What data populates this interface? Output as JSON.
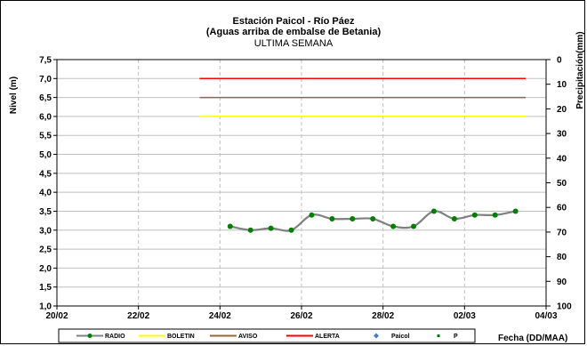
{
  "chart_data": {
    "type": "line",
    "title": "Estación Paicol - Río Páez",
    "subtitle": "(Aguas arriba de embalse de Betania)",
    "period": "ULTIMA SEMANA",
    "ylabel": "Nivel (m)",
    "y2label": "Precipitación(mm)",
    "xlabel": "Fecha (DD/MAA)",
    "ylim": [
      1.0,
      7.5
    ],
    "y2lim": [
      0,
      100
    ],
    "y2_inverted": true,
    "yticks": [
      "1,0",
      "1,5",
      "2,0",
      "2,5",
      "3,0",
      "3,5",
      "4,0",
      "4,5",
      "5,0",
      "5,5",
      "6,0",
      "6,5",
      "7,0",
      "7,5"
    ],
    "y2ticks": [
      "0",
      "10",
      "20",
      "30",
      "40",
      "50",
      "60",
      "70",
      "80",
      "90",
      "100"
    ],
    "xticks": [
      "20/02",
      "22/02",
      "24/02",
      "26/02",
      "28/02",
      "02/03",
      "04/03"
    ],
    "xlim_days": [
      0,
      12
    ],
    "grid": true,
    "legend_position": "bottom",
    "legend": [
      "RADIO",
      "BOLETIN",
      "AVISO",
      "ALERTA",
      "Paicol",
      "P"
    ],
    "colors": {
      "radio_line": "#808080",
      "radio_marker": "#008000",
      "boletin": "#ffff00",
      "aviso": "#996633",
      "alerta": "#ff0000",
      "paicol": "#4a7ebb",
      "p": "#008000",
      "grid": "#c0c0c0"
    },
    "thresholds": {
      "start_day": 3.5,
      "end_day": 11.5,
      "boletin": 6.0,
      "aviso": 6.5,
      "alerta": 7.0
    },
    "series": [
      {
        "name": "RADIO",
        "x": [
          4.25,
          4.75,
          5.25,
          5.75,
          6.25,
          6.75,
          7.25,
          7.75,
          8.25,
          8.75,
          9.25,
          9.75,
          10.25,
          10.75,
          11.25
        ],
        "values": [
          3.1,
          3.0,
          3.05,
          3.0,
          3.4,
          3.3,
          3.3,
          3.3,
          3.1,
          3.1,
          3.5,
          3.3,
          3.4,
          3.4,
          3.5
        ]
      }
    ]
  }
}
